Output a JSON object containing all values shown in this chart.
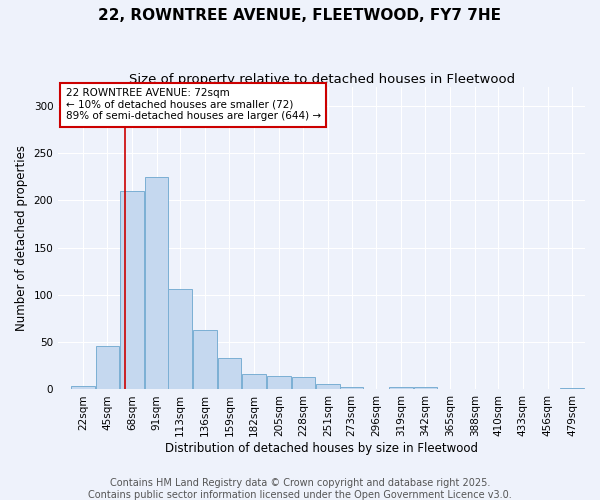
{
  "title": "22, ROWNTREE AVENUE, FLEETWOOD, FY7 7HE",
  "subtitle": "Size of property relative to detached houses in Fleetwood",
  "xlabel": "Distribution of detached houses by size in Fleetwood",
  "ylabel": "Number of detached properties",
  "footer_line1": "Contains HM Land Registry data © Crown copyright and database right 2025.",
  "footer_line2": "Contains public sector information licensed under the Open Government Licence v3.0.",
  "bins": [
    22,
    45,
    68,
    91,
    113,
    136,
    159,
    182,
    205,
    228,
    251,
    273,
    296,
    319,
    342,
    365,
    388,
    410,
    433,
    456,
    479
  ],
  "values": [
    4,
    46,
    210,
    225,
    106,
    63,
    33,
    16,
    14,
    13,
    6,
    3,
    1,
    3,
    3,
    0,
    0,
    0,
    0,
    0,
    2
  ],
  "bar_color": "#c5d8ef",
  "bar_edge_color": "#7bafd4",
  "property_size": 72,
  "red_line_color": "#cc0000",
  "annotation_line1": "22 ROWNTREE AVENUE: 72sqm",
  "annotation_line2": "← 10% of detached houses are smaller (72)",
  "annotation_line3": "89% of semi-detached houses are larger (644) →",
  "annotation_box_color": "#ffffff",
  "annotation_box_edge_color": "#cc0000",
  "ylim": [
    0,
    320
  ],
  "xlim_min": 10,
  "xlim_max": 502,
  "background_color": "#eef2fb",
  "grid_color": "#ffffff",
  "title_fontsize": 11,
  "subtitle_fontsize": 9.5,
  "axis_label_fontsize": 8.5,
  "tick_fontsize": 7.5,
  "footer_fontsize": 7,
  "annotation_fontsize": 7.5
}
